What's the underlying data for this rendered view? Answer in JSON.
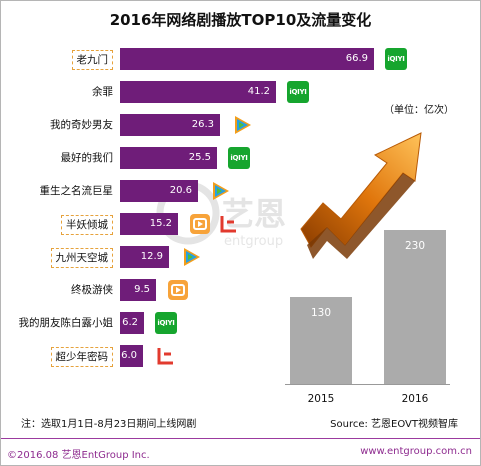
{
  "chart_data": [
    {
      "type": "bar",
      "orientation": "horizontal",
      "title": "2016年网络剧播放TOP10及流量变化",
      "categories": [
        "老九门",
        "余罪",
        "我的奇妙男友",
        "最好的我们",
        "重生之名流巨星",
        "半妖倾城",
        "九州天空城",
        "终极游侠",
        "我的朋友陈白露小姐",
        "超少年密码"
      ],
      "values": [
        66.9,
        41.2,
        26.3,
        25.5,
        20.6,
        15.2,
        12.9,
        9.5,
        6.2,
        6.0
      ],
      "value_labels": [
        "66.9",
        "41.2",
        "26.3",
        "25.5",
        "20.6",
        "15.2",
        "12.9",
        "9.5",
        "6.2",
        "6.0"
      ],
      "highlighted": [
        true,
        false,
        false,
        false,
        false,
        true,
        true,
        false,
        false,
        true
      ],
      "platforms": [
        [
          "iqiyi"
        ],
        [
          "iqiyi"
        ],
        [
          "tencent"
        ],
        [
          "iqiyi"
        ],
        [
          "tencent"
        ],
        [
          "youku",
          "letv"
        ],
        [
          "tencent"
        ],
        [
          "youku"
        ],
        [
          "iqiyi"
        ],
        [
          "letv"
        ]
      ],
      "bar_color": "#6f1d79"
    },
    {
      "type": "bar",
      "categories": [
        "2015",
        "2016"
      ],
      "values": [
        130,
        230
      ],
      "value_labels": [
        "130",
        "230"
      ],
      "unit": "（单位：亿次）",
      "bar_color": "#ababab"
    }
  ],
  "platform_logos": {
    "iqiyi": "iQIYI"
  },
  "note": "注：选取1月1日-8月23日期间上线网剧",
  "source": "Source: 艺恩EOVT视频智库",
  "copyright": "©2016.08 艺恩EntGroup Inc.",
  "website": "www.entgroup.com.cn",
  "watermark": "艺恩",
  "watermark_sub": "entgroup"
}
